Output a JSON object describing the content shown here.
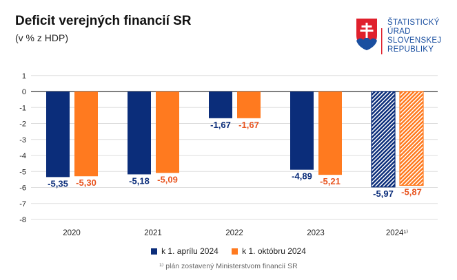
{
  "title": "Deficit verejných financií SR",
  "subtitle": "(v % z HDP)",
  "logo": {
    "text": [
      "ŠTATISTICKÝ",
      "ÚRAD",
      "SLOVENSKEJ",
      "REPUBLIKY"
    ]
  },
  "footnote": "¹⁾ plán zostavený Ministerstvom financií SR",
  "chart_data": {
    "type": "bar",
    "categories": [
      "2020",
      "2021",
      "2022",
      "2023",
      "2024¹⁾"
    ],
    "series": [
      {
        "name": "k 1. aprílu 2024",
        "color": "#0b2d7a",
        "label_color": "#0b2d7a",
        "values": [
          -5.35,
          -5.18,
          -1.67,
          -4.89,
          -5.97
        ],
        "labels": [
          "-5,35",
          "-5,18",
          "-1,67",
          "-4,89",
          "-5,97"
        ]
      },
      {
        "name": "k 1. októbru 2024",
        "color": "#ff7a1f",
        "label_color": "#e8541f",
        "values": [
          -5.3,
          -5.09,
          -1.67,
          -5.21,
          -5.87
        ],
        "labels": [
          "-5,30",
          "-5,09",
          "-1,67",
          "-5,21",
          "-5,87"
        ]
      }
    ],
    "hatched_categories": [
      "2024¹⁾"
    ],
    "ylim": [
      -8,
      1
    ],
    "yticks": [
      1,
      0,
      -1,
      -2,
      -3,
      -4,
      -5,
      -6,
      -7,
      -8
    ],
    "grid": true,
    "legend": "bottom"
  }
}
